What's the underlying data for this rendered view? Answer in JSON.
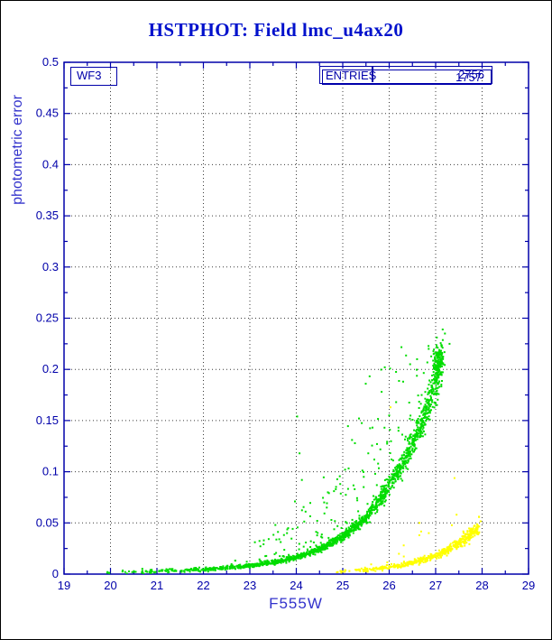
{
  "chart_data": {
    "type": "scatter",
    "title": "HSTPHOT: Field lmc_u4ax20",
    "xlabel": "F555W",
    "ylabel": "photometric error",
    "xlim": [
      19,
      29
    ],
    "ylim": [
      0,
      0.5
    ],
    "x_major_step": 1,
    "y_major_step": 0.05,
    "x_minor_step": 0.5,
    "y_minor_step": 0.025,
    "x_tick_labels": [
      "19",
      "20",
      "21",
      "22",
      "23",
      "24",
      "25",
      "26",
      "27",
      "28",
      "29"
    ],
    "y_tick_labels": [
      "0",
      "0.05",
      "0.1",
      "0.15",
      "0.2",
      "0.25",
      "0.3",
      "0.35",
      "0.4",
      "0.45",
      "0.5"
    ],
    "grid": true,
    "legend_position": "none",
    "colors": {
      "axis": "#0000aa",
      "grid": "#3a3a3a",
      "title": "#0011cc",
      "axis_label": "#3333cc"
    },
    "annotations": {
      "camera_label": "WF3",
      "entries_label": "ENTRIES",
      "entries_values": [
        "2756",
        "1757"
      ]
    },
    "series": [
      {
        "name": "wf3-green-stars",
        "color": "#00dd00",
        "locus": [
          [
            19.3,
            0.0015
          ],
          [
            20,
            0.002
          ],
          [
            21,
            0.0028
          ],
          [
            22,
            0.0045
          ],
          [
            23,
            0.008
          ],
          [
            23.5,
            0.0115
          ],
          [
            24,
            0.016
          ],
          [
            24.5,
            0.024
          ],
          [
            25,
            0.037
          ],
          [
            25.5,
            0.055
          ],
          [
            26,
            0.085
          ],
          [
            26.4,
            0.117
          ],
          [
            26.7,
            0.148
          ],
          [
            26.9,
            0.172
          ],
          [
            27.05,
            0.196
          ],
          [
            27.15,
            0.212
          ]
        ],
        "n_band": 1600,
        "band_bias": 0.42,
        "rel_sigma": 0.05,
        "abs_sigma": 0.0009,
        "n_scatter": 240,
        "scatter_mag_min": 22.6,
        "scatter_mag_span": 4.6,
        "scatter_cap": 0.235,
        "blob": {
          "cx": 27.04,
          "cy": 0.205,
          "sx": 0.055,
          "sy": 0.009,
          "n": 140
        },
        "outliers": [
          [
            24.02,
            0.154
          ],
          [
            24.07,
            0.118
          ],
          [
            24.12,
            0.092
          ],
          [
            23.97,
            0.071
          ],
          [
            24.2,
            0.061
          ],
          [
            23.55,
            0.048
          ],
          [
            23.3,
            0.033
          ],
          [
            23.8,
            0.04
          ],
          [
            24.45,
            0.052
          ],
          [
            24.6,
            0.07
          ],
          [
            24.85,
            0.083
          ],
          [
            25.05,
            0.102
          ],
          [
            25.2,
            0.131
          ],
          [
            25.35,
            0.152
          ],
          [
            25.45,
            0.085
          ],
          [
            25.55,
            0.118
          ],
          [
            25.7,
            0.098
          ],
          [
            25.9,
            0.143
          ],
          [
            26.0,
            0.155
          ],
          [
            26.05,
            0.112
          ],
          [
            26.15,
            0.168
          ],
          [
            26.2,
            0.14
          ],
          [
            26.3,
            0.188
          ],
          [
            26.45,
            0.205
          ],
          [
            26.6,
            0.21
          ],
          [
            26.7,
            0.175
          ],
          [
            26.85,
            0.22
          ],
          [
            27.2,
            0.235
          ],
          [
            27.3,
            0.225
          ]
        ]
      },
      {
        "name": "yellow-stars",
        "color": "#ffff00",
        "locus": [
          [
            24.7,
            0.0015
          ],
          [
            25.2,
            0.003
          ],
          [
            25.8,
            0.0055
          ],
          [
            26.3,
            0.009
          ],
          [
            26.8,
            0.015
          ],
          [
            27.2,
            0.022
          ],
          [
            27.6,
            0.033
          ],
          [
            27.95,
            0.047
          ]
        ],
        "n_band": 520,
        "band_bias": 0.5,
        "rel_sigma": 0.08,
        "abs_sigma": 0.0008,
        "n_scatter": 18,
        "scatter_mag_min": 25.0,
        "scatter_mag_span": 2.8,
        "scatter_cap": 0.1,
        "blob": null,
        "outliers": [
          [
            26.03,
            0.163
          ],
          [
            27.45,
            0.058
          ],
          [
            26.65,
            0.05
          ]
        ]
      }
    ]
  }
}
